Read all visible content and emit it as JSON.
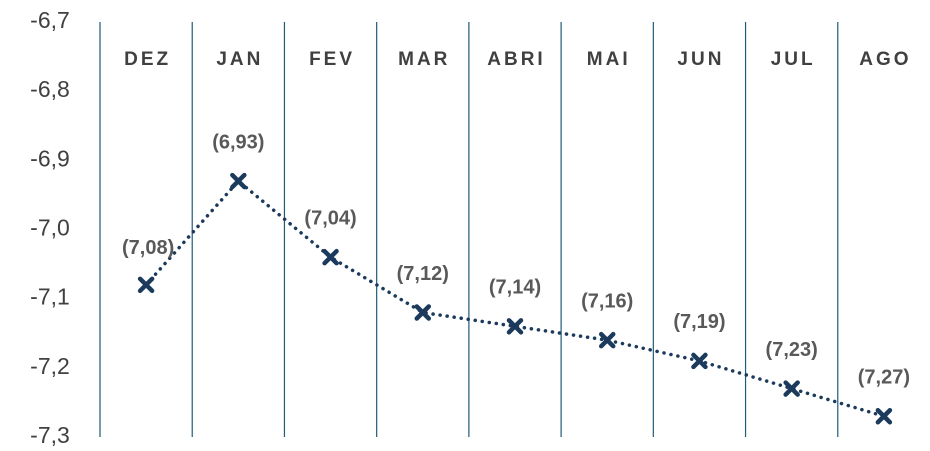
{
  "chart_data": {
    "type": "line",
    "categories": [
      "DEZ",
      "JAN",
      "FEV",
      "MAR",
      "ABRI",
      "MAI",
      "JUN",
      "JUL",
      "AGO"
    ],
    "series": [
      {
        "color": "#1b3a5c",
        "values": [
          -7.08,
          -6.93,
          -7.04,
          -7.12,
          -7.14,
          -7.16,
          -7.19,
          -7.23,
          -7.27
        ],
        "value_labels": [
          "(7,08)",
          "(6,93)",
          "(7,04)",
          "(7,12)",
          "(7,14)",
          "(7,16)",
          "(7,19)",
          "(7,23)",
          "(7,27)"
        ]
      }
    ],
    "ylim": [
      -6.7,
      -7.3
    ],
    "yticks": [
      {
        "value": -6.7,
        "label": "-6,7"
      },
      {
        "value": -6.8,
        "label": "-6,8"
      },
      {
        "value": -6.9,
        "label": "-6,9"
      },
      {
        "value": -7.0,
        "label": "-7,0"
      },
      {
        "value": -7.1,
        "label": "-7,1"
      },
      {
        "value": -7.2,
        "label": "-7,2"
      },
      {
        "value": -7.3,
        "label": "-7,3"
      }
    ]
  }
}
